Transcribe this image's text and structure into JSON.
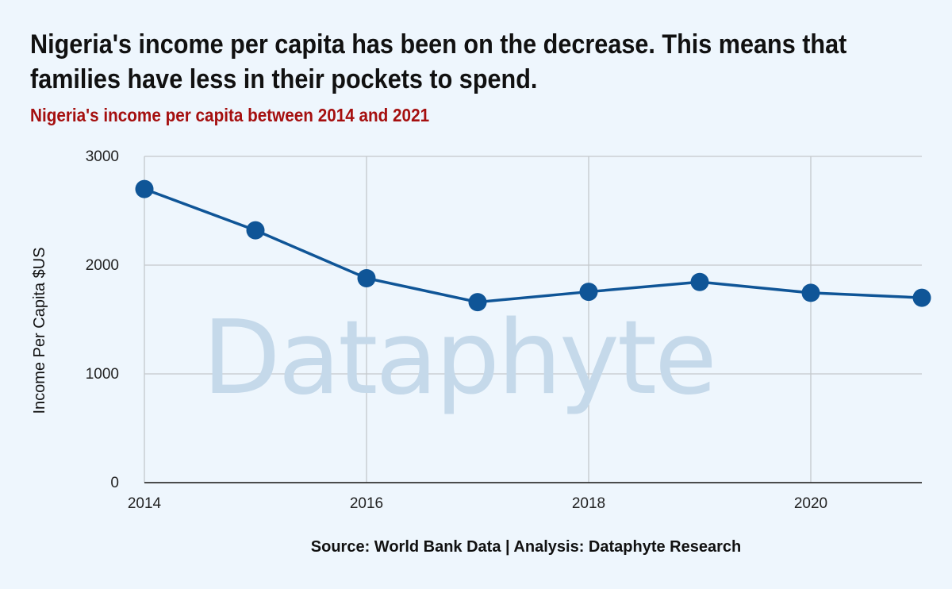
{
  "title_lines": [
    "Nigeria's income per capita has been on the decrease. This means that",
    "families have less in their pockets to spend."
  ],
  "subtitle": "Nigeria's income per capita between 2014 and 2021",
  "source": "Source: World Bank Data | Analysis: Dataphyte Research",
  "watermark": "Dataphyte",
  "colors": {
    "background": "#eef6fd",
    "line": "#0f5597",
    "subtitle": "#a50f0f",
    "grid": "#c4c8cc",
    "watermark": "#c5d9ea"
  },
  "chart_data": {
    "type": "line",
    "title": "Nigeria's income per capita between 2014 and 2021",
    "xlabel": "",
    "ylabel": "Income Per Capita $US",
    "x": [
      2014,
      2015,
      2016,
      2017,
      2018,
      2019,
      2020,
      2021
    ],
    "series": [
      {
        "values": [
          2700,
          2320,
          1880,
          1660,
          1755,
          1845,
          1745,
          1700
        ]
      }
    ],
    "xlim": [
      2014,
      2021
    ],
    "ylim": [
      0,
      3000
    ],
    "xticks": [
      "2014",
      "2016",
      "2018",
      "2020"
    ],
    "yticks": [
      "0",
      "1000",
      "2000",
      "3000"
    ],
    "grid": true,
    "legend": "none"
  }
}
